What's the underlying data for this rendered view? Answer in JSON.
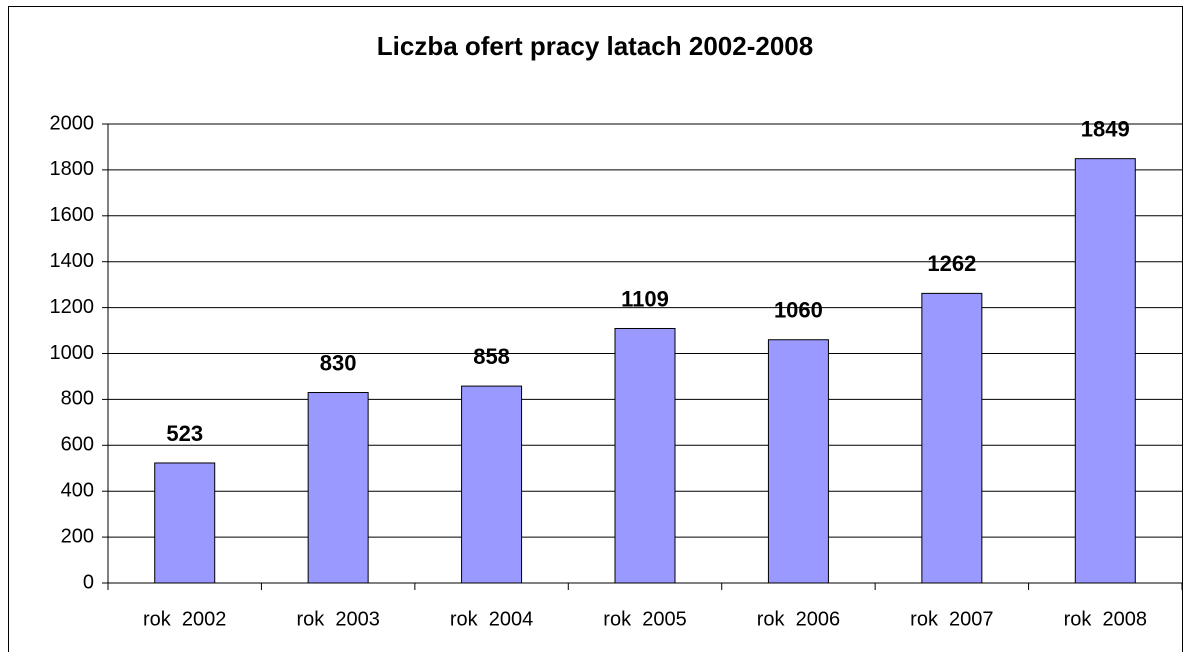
{
  "chart_data": {
    "type": "bar",
    "title": "Liczba ofert pracy latach 2002-2008",
    "categories": [
      "rok  2002",
      "rok  2003",
      "rok  2004",
      "rok  2005",
      "rok  2006",
      "rok  2007",
      "rok  2008"
    ],
    "values": [
      523,
      830,
      858,
      1109,
      1060,
      1262,
      1849
    ],
    "color": "#9999ff",
    "ylim": [
      0,
      2000
    ],
    "yticks": [
      0,
      200,
      400,
      600,
      800,
      1000,
      1200,
      1400,
      1600,
      1800,
      2000
    ],
    "grid": true
  }
}
